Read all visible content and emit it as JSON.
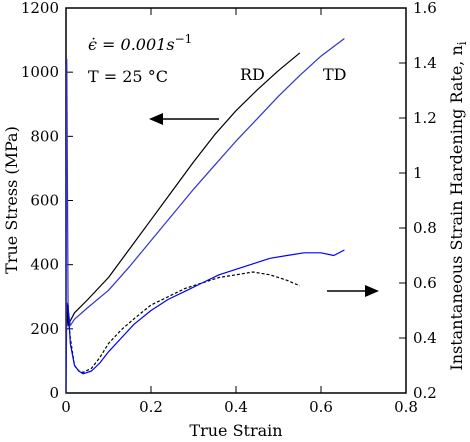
{
  "chart_data": {
    "type": "line",
    "xlabel": "True Strain",
    "ylabel_left": "True Stress (MPa)",
    "ylabel_right": "Instantaneous Strain Hardening Rate, n",
    "ylabel_right_subscript": "i",
    "xlim": [
      0,
      0.8
    ],
    "ylim_left": [
      0,
      1200
    ],
    "ylim_right": [
      0.2,
      1.6
    ],
    "x_ticks": [
      "0",
      "0.2",
      "0.4",
      "0.6",
      "0.8"
    ],
    "y_left_ticks": [
      "0",
      "200",
      "400",
      "600",
      "800",
      "1000",
      "1200"
    ],
    "y_right_ticks": [
      "0.2",
      "0.4",
      "0.6",
      "0.8",
      "1",
      "1.2",
      "1.4",
      "1.6"
    ],
    "grid": false,
    "annotations": {
      "strain_rate": "ϵ̇ = 0.001s",
      "strain_rate_exp": "−1",
      "temperature": "T = 25 °C",
      "rd_label": "RD",
      "td_label": "TD"
    },
    "series": [
      {
        "name": "RD",
        "axis": "left",
        "color": "#000000",
        "x": [
          0,
          0.002,
          0.005,
          0.01,
          0.02,
          0.05,
          0.1,
          0.15,
          0.2,
          0.25,
          0.3,
          0.35,
          0.4,
          0.45,
          0.5,
          0.55
        ],
        "y": [
          0,
          280,
          210,
          225,
          250,
          290,
          360,
          450,
          540,
          630,
          720,
          805,
          880,
          945,
          1005,
          1060
        ]
      },
      {
        "name": "TD",
        "axis": "left",
        "color": "#3333cc",
        "x": [
          0,
          0.002,
          0.005,
          0.01,
          0.02,
          0.05,
          0.1,
          0.15,
          0.2,
          0.25,
          0.3,
          0.35,
          0.4,
          0.45,
          0.5,
          0.55,
          0.6,
          0.655
        ],
        "y": [
          0,
          1040,
          260,
          210,
          230,
          265,
          320,
          395,
          475,
          555,
          635,
          710,
          785,
          855,
          925,
          990,
          1050,
          1105
        ]
      },
      {
        "name": "RD",
        "axis": "right",
        "color": "#000000",
        "dashed": true,
        "x": [
          0.005,
          0.01,
          0.02,
          0.03,
          0.04,
          0.06,
          0.08,
          0.1,
          0.13,
          0.16,
          0.2,
          0.24,
          0.28,
          0.32,
          0.36,
          0.4,
          0.44,
          0.48,
          0.52,
          0.55
        ],
        "y": [
          0.48,
          0.4,
          0.3,
          0.28,
          0.275,
          0.29,
          0.33,
          0.38,
          0.43,
          0.47,
          0.52,
          0.55,
          0.58,
          0.6,
          0.62,
          0.63,
          0.64,
          0.63,
          0.61,
          0.59
        ]
      },
      {
        "name": "TD",
        "axis": "right",
        "color": "#0000ff",
        "x": [
          0.005,
          0.01,
          0.02,
          0.03,
          0.04,
          0.06,
          0.08,
          0.1,
          0.13,
          0.16,
          0.2,
          0.24,
          0.28,
          0.32,
          0.36,
          0.4,
          0.44,
          0.48,
          0.52,
          0.56,
          0.6,
          0.63,
          0.655
        ],
        "y": [
          0.52,
          0.38,
          0.3,
          0.28,
          0.27,
          0.28,
          0.31,
          0.35,
          0.4,
          0.45,
          0.5,
          0.54,
          0.57,
          0.6,
          0.63,
          0.65,
          0.67,
          0.69,
          0.7,
          0.71,
          0.71,
          0.7,
          0.72
        ]
      }
    ]
  }
}
